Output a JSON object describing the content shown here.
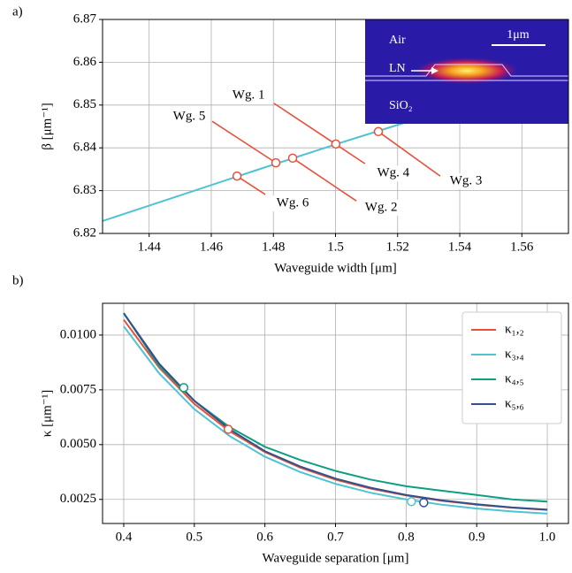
{
  "chart_data": [
    {
      "type": "line",
      "panel": "a)",
      "xlabel": "Waveguide width [μm]",
      "ylabel": "β [μm⁻¹]",
      "xlim": [
        1.425,
        1.575
      ],
      "xticks": [
        1.44,
        1.46,
        1.48,
        1.5,
        1.52,
        1.54,
        1.56
      ],
      "ylim": [
        6.82,
        6.87
      ],
      "yticks": [
        6.82,
        6.83,
        6.84,
        6.85,
        6.86,
        6.87
      ],
      "grid": true,
      "series": [
        {
          "color": "#4fc3d3",
          "x": [
            1.425,
            1.45,
            1.475,
            1.5,
            1.525,
            1.55,
            1.575
          ],
          "values": [
            6.8229,
            6.8289,
            6.8349,
            6.8408,
            6.8465,
            6.8521,
            6.8575
          ]
        }
      ],
      "markers": {
        "color": "#e8503a",
        "x": [
          1.4683,
          1.4808,
          1.4862,
          1.5001,
          1.5138
        ],
        "values": [
          6.8334,
          6.8365,
          6.8376,
          6.8409,
          6.8438
        ]
      },
      "segment_color": "#e8503a",
      "segments": [
        {
          "x": [
            1.4802,
            1.5095
          ],
          "values": [
            6.8504,
            6.8363
          ]
        },
        {
          "x": [
            1.5138,
            1.5337
          ],
          "values": [
            6.8438,
            6.8334
          ]
        },
        {
          "x": [
            1.4603,
            1.4808
          ],
          "values": [
            6.8462,
            6.8365
          ]
        },
        {
          "x": [
            1.4862,
            1.5067
          ],
          "values": [
            6.8376,
            6.8276
          ]
        },
        {
          "x": [
            1.4683,
            1.4774
          ],
          "values": [
            6.8334,
            6.8291
          ]
        }
      ],
      "annotations": [
        {
          "text": "Wg. 1",
          "x": 1.472,
          "y": 6.8522
        },
        {
          "text": "Wg. 5",
          "x": 1.4529,
          "y": 6.8473
        },
        {
          "text": "Wg. 4",
          "x": 1.5186,
          "y": 6.834
        },
        {
          "text": "Wg. 3",
          "x": 1.542,
          "y": 6.8322
        },
        {
          "text": "Wg. 2",
          "x": 1.5147,
          "y": 6.826
        },
        {
          "text": "Wg. 6",
          "x": 1.4862,
          "y": 6.827
        }
      ],
      "inset": {
        "labels": [
          "Air",
          "LN",
          "SiO₂",
          "1μm"
        ]
      }
    },
    {
      "type": "line",
      "panel": "b)",
      "xlabel": "Waveguide separation [μm]",
      "ylabel": "κ [μm⁻¹]",
      "xlim": [
        0.37,
        1.03
      ],
      "xticks": [
        0.4,
        0.5,
        0.6,
        0.7,
        0.8,
        0.9,
        {
          "value": 1,
          "label": "1.0"
        }
      ],
      "ylim": [
        0.0014,
        0.01145
      ],
      "yticks": [
        {
          "value": 0.0025,
          "label": "0.0025"
        },
        {
          "value": 0.005,
          "label": "0.0050"
        },
        {
          "value": 0.0075,
          "label": "0.0075"
        },
        {
          "value": 0.01,
          "label": "0.0100"
        }
      ],
      "grid": true,
      "legend": "upper right",
      "x": [
        0.4,
        0.45,
        0.5,
        0.55,
        0.6,
        0.65,
        0.7,
        0.75,
        0.8,
        0.85,
        0.9,
        0.95,
        1.0
      ],
      "series": [
        {
          "name": "κ₁,₂",
          "color": "#e8503a",
          "values": [
            0.0107,
            0.00852,
            0.00686,
            0.00561,
            0.00466,
            0.00395,
            0.0034,
            0.00299,
            0.00268,
            0.00244,
            0.00226,
            0.00212,
            0.00202
          ],
          "markers": {
            "x": [
              0.548
            ],
            "values": [
              0.0057
            ]
          }
        },
        {
          "name": "κ₃,₄",
          "color": "#4fc3d3",
          "values": [
            0.0104,
            0.00826,
            0.00662,
            0.00539,
            0.00445,
            0.00375,
            0.00321,
            0.0028,
            0.0025,
            0.00226,
            0.00208,
            0.00195,
            0.00185
          ],
          "markers": {
            "x": [
              0.8075
            ],
            "values": [
              0.0024
            ]
          }
        },
        {
          "name": "κ₄,₅",
          "color": "#0e9e84",
          "values": [
            0.011,
            0.0086,
            0.007,
            0.0058,
            0.0049,
            0.0043,
            0.0038,
            0.0034,
            0.0031,
            0.0029,
            0.0027,
            0.0025,
            0.0024
          ],
          "markers": {
            "x": [
              0.485
            ],
            "values": [
              0.0076
            ]
          }
        },
        {
          "name": "κ₅,₆",
          "color": "#34508a",
          "values": [
            0.011,
            0.0087,
            0.007,
            0.0057,
            0.0047,
            0.004,
            0.00345,
            0.00303,
            0.0027,
            0.00246,
            0.00228,
            0.00213,
            0.00203
          ],
          "markers": {
            "x": [
              0.825
            ],
            "values": [
              0.00235
            ]
          }
        }
      ]
    }
  ]
}
